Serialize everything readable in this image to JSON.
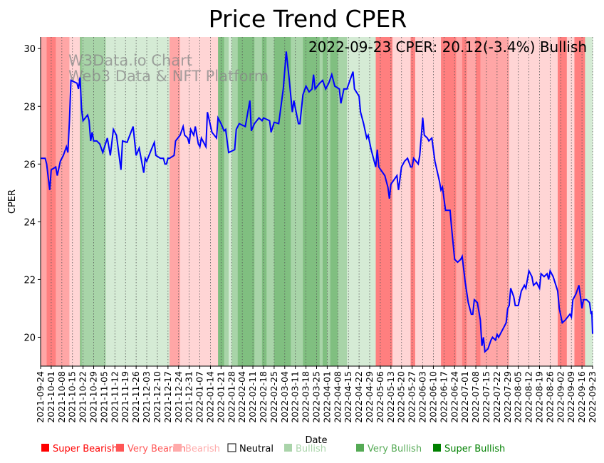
{
  "chart_data": {
    "type": "line",
    "title": "Price Trend CPER",
    "xlabel": "Date",
    "ylabel": "CPER",
    "ylim": [
      19.0,
      30.4
    ],
    "yticks": [
      20,
      22,
      24,
      26,
      28,
      30
    ],
    "start_date": "2021-09-24",
    "x_unit": "days since start_date",
    "xlim": [
      0,
      364
    ],
    "annotation": "2022-09-23 CPER: 20.12(-3.4%) Bullish",
    "watermark": [
      "W3Data.io Chart",
      "Web3 Data & NFT Platform"
    ],
    "grid": "vertical dotted at weekly ticks",
    "xticks": [
      "2021-09-24",
      "2021-10-01",
      "2021-10-08",
      "2021-10-15",
      "2021-10-22",
      "2021-10-29",
      "2021-11-05",
      "2021-11-12",
      "2021-11-19",
      "2021-11-26",
      "2021-12-03",
      "2021-12-10",
      "2021-12-17",
      "2021-12-24",
      "2021-12-31",
      "2022-01-07",
      "2022-01-14",
      "2022-01-21",
      "2022-01-28",
      "2022-02-04",
      "2022-02-11",
      "2022-02-18",
      "2022-02-25",
      "2022-03-04",
      "2022-03-11",
      "2022-03-18",
      "2022-03-25",
      "2022-04-01",
      "2022-04-08",
      "2022-04-15",
      "2022-04-22",
      "2022-04-29",
      "2022-05-06",
      "2022-05-13",
      "2022-05-20",
      "2022-05-27",
      "2022-06-03",
      "2022-06-10",
      "2022-06-17",
      "2022-06-24",
      "2022-07-01",
      "2022-07-08",
      "2022-07-15",
      "2022-07-22",
      "2022-07-29",
      "2022-08-05",
      "2022-08-12",
      "2022-08-19",
      "2022-08-26",
      "2022-09-02",
      "2022-09-09",
      "2022-09-16",
      "2022-09-23"
    ],
    "series": [
      {
        "name": "CPER",
        "color": "#0000ff",
        "points": [
          [
            0,
            26.2
          ],
          [
            3,
            26.2
          ],
          [
            4,
            26.0
          ],
          [
            6,
            25.1
          ],
          [
            7,
            25.8
          ],
          [
            10,
            25.9
          ],
          [
            11,
            25.6
          ],
          [
            13,
            26.1
          ],
          [
            15,
            26.3
          ],
          [
            17,
            26.6
          ],
          [
            18,
            26.4
          ],
          [
            19,
            27.5
          ],
          [
            20,
            28.9
          ],
          [
            24,
            28.8
          ],
          [
            25,
            28.6
          ],
          [
            26,
            29.0
          ],
          [
            27,
            27.9
          ],
          [
            28,
            27.5
          ],
          [
            31,
            27.7
          ],
          [
            32,
            27.5
          ],
          [
            33,
            26.8
          ],
          [
            34,
            27.1
          ],
          [
            35,
            26.8
          ],
          [
            37,
            26.8
          ],
          [
            39,
            26.7
          ],
          [
            41,
            26.4
          ],
          [
            44,
            26.9
          ],
          [
            46,
            26.3
          ],
          [
            48,
            27.2
          ],
          [
            50,
            27.0
          ],
          [
            53,
            25.8
          ],
          [
            54,
            26.8
          ],
          [
            57,
            26.75
          ],
          [
            61,
            27.3
          ],
          [
            63,
            26.3
          ],
          [
            65,
            26.55
          ],
          [
            68,
            25.7
          ],
          [
            69,
            26.2
          ],
          [
            70,
            26.1
          ],
          [
            73,
            26.5
          ],
          [
            75,
            26.75
          ],
          [
            76,
            26.3
          ],
          [
            79,
            26.2
          ],
          [
            81,
            26.2
          ],
          [
            82,
            26.0
          ],
          [
            83,
            26.0
          ],
          [
            84,
            26.2
          ],
          [
            85,
            26.2
          ],
          [
            88,
            26.3
          ],
          [
            89,
            26.8
          ],
          [
            92,
            27.0
          ],
          [
            94,
            27.3
          ],
          [
            95,
            27.0
          ],
          [
            97,
            26.9
          ],
          [
            98,
            26.7
          ],
          [
            99,
            27.2
          ],
          [
            101,
            27.0
          ],
          [
            102,
            27.3
          ],
          [
            104,
            26.7
          ],
          [
            105,
            26.6
          ],
          [
            106,
            26.9
          ],
          [
            109,
            26.6
          ],
          [
            110,
            27.8
          ],
          [
            113,
            27.1
          ],
          [
            116,
            26.9
          ],
          [
            117,
            27.6
          ],
          [
            119,
            27.4
          ],
          [
            121,
            27.15
          ],
          [
            122,
            27.2
          ],
          [
            124,
            26.4
          ],
          [
            128,
            26.5
          ],
          [
            129,
            27.2
          ],
          [
            131,
            27.4
          ],
          [
            133,
            27.35
          ],
          [
            135,
            27.3
          ],
          [
            138,
            28.2
          ],
          [
            139,
            27.15
          ],
          [
            141,
            27.4
          ],
          [
            144,
            27.6
          ],
          [
            146,
            27.5
          ],
          [
            147,
            27.6
          ],
          [
            151,
            27.5
          ],
          [
            152,
            27.1
          ],
          [
            154,
            27.45
          ],
          [
            157,
            27.4
          ],
          [
            160,
            28.6
          ],
          [
            162,
            29.9
          ],
          [
            164,
            28.9
          ],
          [
            166,
            27.8
          ],
          [
            167,
            28.2
          ],
          [
            170,
            27.4
          ],
          [
            171,
            27.4
          ],
          [
            173,
            28.4
          ],
          [
            175,
            28.7
          ],
          [
            177,
            28.5
          ],
          [
            179,
            28.6
          ],
          [
            180,
            29.1
          ],
          [
            181,
            28.6
          ],
          [
            184,
            28.8
          ],
          [
            186,
            28.9
          ],
          [
            188,
            28.6
          ],
          [
            190,
            28.8
          ],
          [
            192,
            29.1
          ],
          [
            194,
            28.7
          ],
          [
            197,
            28.6
          ],
          [
            198,
            28.1
          ],
          [
            200,
            28.6
          ],
          [
            202,
            28.6
          ],
          [
            204,
            28.9
          ],
          [
            206,
            29.2
          ],
          [
            207,
            28.6
          ],
          [
            210,
            28.35
          ],
          [
            211,
            27.8
          ],
          [
            213,
            27.4
          ],
          [
            215,
            26.9
          ],
          [
            216,
            27.0
          ],
          [
            218,
            26.5
          ],
          [
            221,
            25.9
          ],
          [
            222,
            26.5
          ],
          [
            223,
            25.9
          ],
          [
            227,
            25.6
          ],
          [
            228,
            25.4
          ],
          [
            229,
            25.2
          ],
          [
            230,
            24.8
          ],
          [
            231,
            25.3
          ],
          [
            235,
            25.6
          ],
          [
            236,
            25.1
          ],
          [
            238,
            25.9
          ],
          [
            240,
            26.1
          ],
          [
            242,
            26.2
          ],
          [
            244,
            25.9
          ],
          [
            245,
            25.9
          ],
          [
            246,
            26.2
          ],
          [
            249,
            26.0
          ],
          [
            250,
            26.3
          ],
          [
            252,
            27.6
          ],
          [
            253,
            27.0
          ],
          [
            255,
            26.9
          ],
          [
            256,
            26.8
          ],
          [
            258,
            26.9
          ],
          [
            260,
            26.1
          ],
          [
            263,
            25.4
          ],
          [
            264,
            25.1
          ],
          [
            265,
            25.2
          ],
          [
            267,
            24.4
          ],
          [
            270,
            24.4
          ],
          [
            271,
            23.8
          ],
          [
            273,
            22.7
          ],
          [
            275,
            22.6
          ],
          [
            277,
            22.7
          ],
          [
            278,
            22.8
          ],
          [
            280,
            21.9
          ],
          [
            282,
            21.2
          ],
          [
            284,
            20.8
          ],
          [
            285,
            20.8
          ],
          [
            286,
            21.3
          ],
          [
            288,
            21.2
          ],
          [
            290,
            20.6
          ],
          [
            291,
            19.7
          ],
          [
            292,
            20.0
          ],
          [
            293,
            19.5
          ],
          [
            295,
            19.6
          ],
          [
            297,
            19.9
          ],
          [
            298,
            20.0
          ],
          [
            300,
            19.9
          ],
          [
            301,
            20.1
          ],
          [
            302,
            20.0
          ],
          [
            306,
            20.4
          ],
          [
            307,
            20.5
          ],
          [
            308,
            21.0
          ],
          [
            309,
            21.1
          ],
          [
            310,
            21.7
          ],
          [
            312,
            21.4
          ],
          [
            313,
            21.1
          ],
          [
            315,
            21.1
          ],
          [
            317,
            21.6
          ],
          [
            319,
            21.8
          ],
          [
            320,
            21.7
          ],
          [
            322,
            22.3
          ],
          [
            324,
            22.1
          ],
          [
            325,
            21.8
          ],
          [
            327,
            21.9
          ],
          [
            329,
            21.7
          ],
          [
            330,
            22.2
          ],
          [
            332,
            22.1
          ],
          [
            334,
            22.2
          ],
          [
            335,
            22.0
          ],
          [
            336,
            22.3
          ],
          [
            338,
            22.1
          ],
          [
            341,
            21.6
          ],
          [
            342,
            21.0
          ],
          [
            344,
            20.5
          ],
          [
            346,
            20.6
          ],
          [
            349,
            20.8
          ],
          [
            350,
            20.7
          ],
          [
            351,
            21.3
          ],
          [
            353,
            21.5
          ],
          [
            355,
            21.8
          ],
          [
            356,
            21.4
          ],
          [
            357,
            21.0
          ],
          [
            358,
            21.3
          ],
          [
            360,
            21.3
          ],
          [
            362,
            21.2
          ],
          [
            363,
            20.8
          ],
          [
            363.5,
            20.9
          ],
          [
            364,
            20.12
          ]
        ]
      }
    ],
    "sentiment_bands": [
      [
        0,
        4,
        "very_bearish"
      ],
      [
        4,
        10,
        "super_bearish"
      ],
      [
        10,
        19,
        "very_bearish"
      ],
      [
        19,
        26,
        "bearish"
      ],
      [
        26,
        27,
        "super_bullish"
      ],
      [
        27,
        43,
        "very_bullish"
      ],
      [
        43,
        85,
        "bullish"
      ],
      [
        85,
        92,
        "very_bearish"
      ],
      [
        92,
        117,
        "bearish"
      ],
      [
        117,
        121,
        "super_bullish"
      ],
      [
        121,
        124,
        "very_bullish"
      ],
      [
        124,
        126,
        "bullish"
      ],
      [
        126,
        130,
        "very_bullish"
      ],
      [
        130,
        141,
        "super_bullish"
      ],
      [
        141,
        146,
        "very_bullish"
      ],
      [
        146,
        149,
        "super_bullish"
      ],
      [
        149,
        154,
        "very_bullish"
      ],
      [
        154,
        165,
        "super_bullish"
      ],
      [
        165,
        173,
        "very_bullish"
      ],
      [
        173,
        184,
        "super_bullish"
      ],
      [
        184,
        186,
        "very_bullish"
      ],
      [
        186,
        189,
        "super_bullish"
      ],
      [
        189,
        191,
        "very_bullish"
      ],
      [
        191,
        196,
        "super_bullish"
      ],
      [
        196,
        202,
        "very_bullish"
      ],
      [
        202,
        221,
        "bullish"
      ],
      [
        221,
        232,
        "super_bearish"
      ],
      [
        232,
        244,
        "bearish"
      ],
      [
        244,
        247,
        "super_bearish"
      ],
      [
        247,
        264,
        "bearish"
      ],
      [
        264,
        274,
        "super_bearish"
      ],
      [
        274,
        278,
        "very_bearish"
      ],
      [
        278,
        281,
        "super_bearish"
      ],
      [
        281,
        287,
        "very_bearish"
      ],
      [
        287,
        290,
        "super_bearish"
      ],
      [
        290,
        293,
        "very_bearish"
      ],
      [
        293,
        309,
        "very_bearish"
      ],
      [
        309,
        341,
        "bearish"
      ],
      [
        341,
        347,
        "super_bearish"
      ],
      [
        347,
        352,
        "bearish"
      ],
      [
        352,
        359,
        "super_bearish"
      ],
      [
        359,
        364,
        "bullish"
      ]
    ],
    "band_colors": {
      "super_bearish": "#ff7f7f",
      "very_bearish": "#ffa6a6",
      "bearish": "#ffd5d5",
      "neutral": "#ffffff",
      "bullish": "#d5ebd5",
      "very_bullish": "#a8d4a8",
      "super_bullish": "#80bf80"
    },
    "legend": [
      {
        "label": "Super Bearish",
        "color": "#ff0000",
        "text_color": "#ff0000"
      },
      {
        "label": "Very Bearish",
        "color": "#ff5555",
        "text_color": "#ff5555"
      },
      {
        "label": "Bearish",
        "color": "#ffaaaa",
        "text_color": "#ffaaaa"
      },
      {
        "label": "Neutral",
        "color": "#ffffff",
        "text_color": "#000000"
      },
      {
        "label": "Bullish",
        "color": "#aad4aa",
        "text_color": "#aad4aa"
      },
      {
        "label": "Very Bullish",
        "color": "#55aa55",
        "text_color": "#55aa55"
      },
      {
        "label": "Super Bullish",
        "color": "#008000",
        "text_color": "#008000"
      }
    ],
    "legend_placement": "bottom"
  }
}
